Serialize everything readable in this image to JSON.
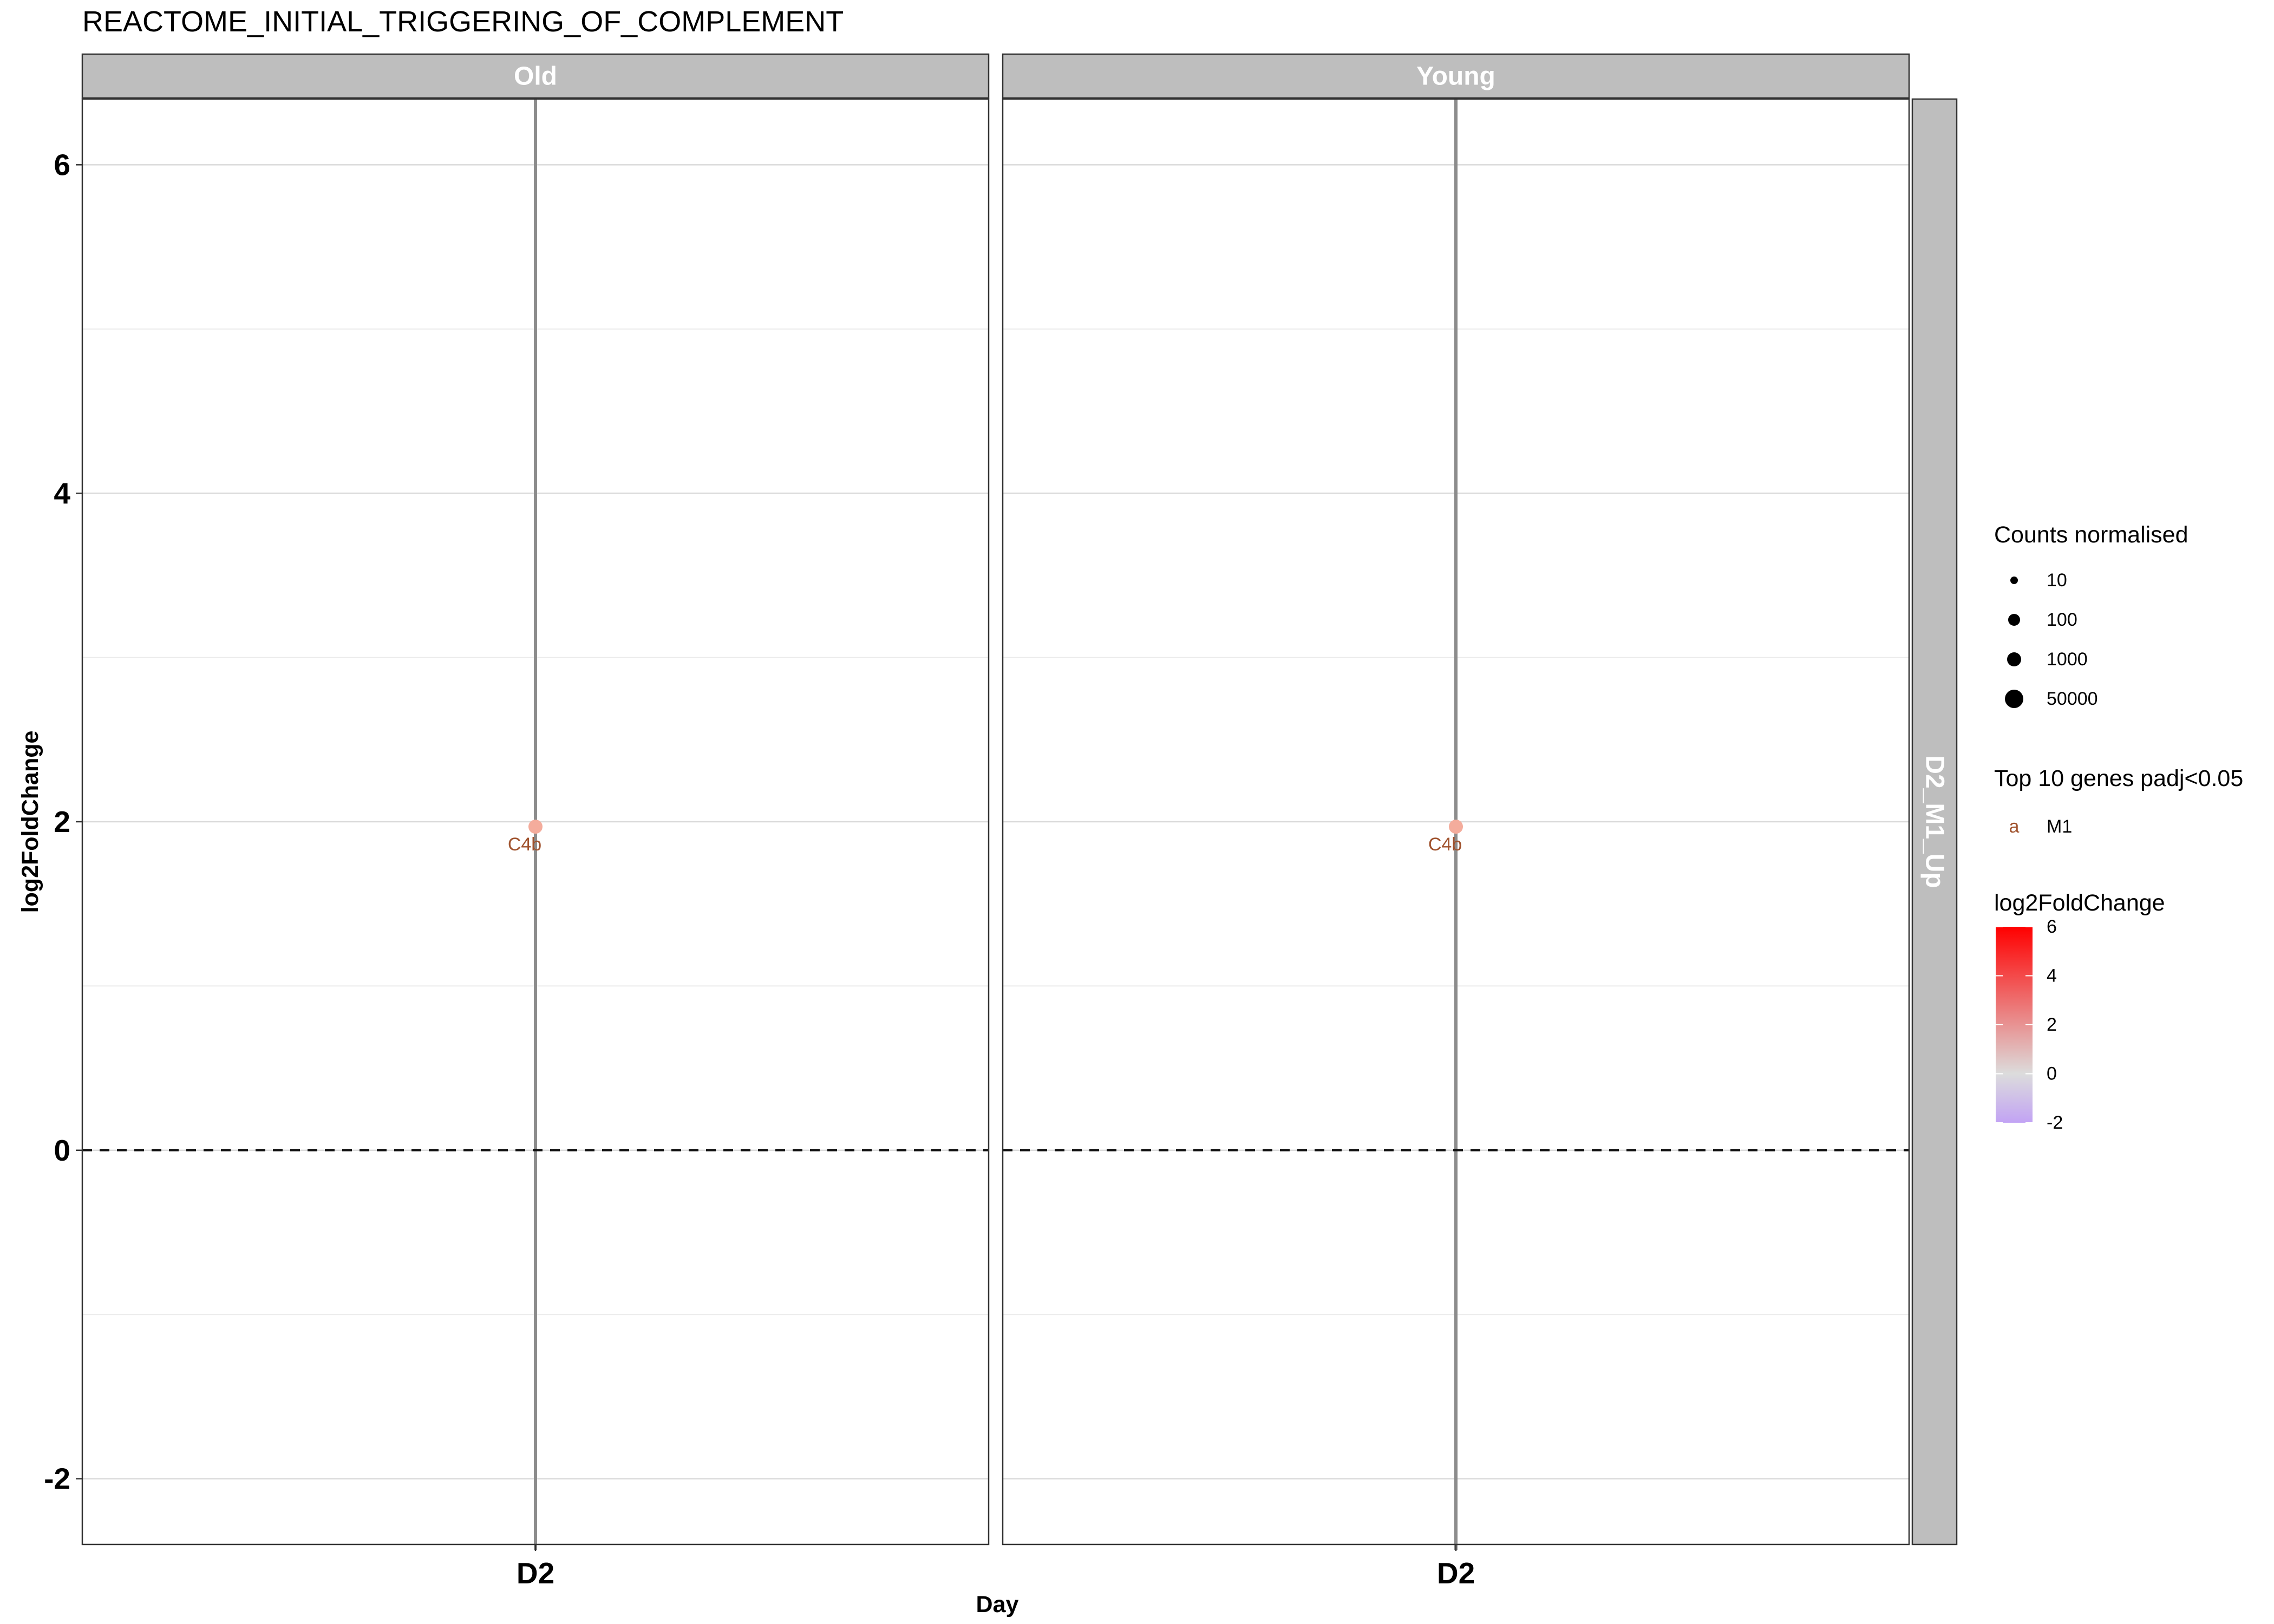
{
  "chart_data": {
    "type": "scatter",
    "title": "REACTOME_INITIAL_TRIGGERING_OF_COMPLEMENT",
    "xlabel": "Day",
    "ylabel": "log2FoldChange",
    "x_categories": [
      "D2"
    ],
    "ylim": [
      -2.4,
      6.4
    ],
    "yticks": [
      -2,
      0,
      2,
      4,
      6
    ],
    "y_tick_labels": [
      "-2",
      "0",
      "2",
      "4",
      "6"
    ],
    "reference_line": 0,
    "row_facet": "D2_M1_Up",
    "panels": [
      {
        "name": "Old",
        "points": [
          {
            "x": "D2",
            "y": 1.97,
            "gene": "C4b",
            "color": "#F4AC9C"
          }
        ]
      },
      {
        "name": "Young",
        "points": [
          {
            "x": "D2",
            "y": 1.97,
            "gene": "C4b",
            "color": "#F4AC9C"
          }
        ]
      }
    ],
    "legend": {
      "size": {
        "title": "Counts normalised",
        "labels": [
          "10",
          "100",
          "1000",
          "50000"
        ]
      },
      "label_color": {
        "title": "Top 10 genes padj<0.05",
        "key": "a",
        "label": "M1",
        "color": "#A0522D"
      },
      "color": {
        "title": "log2FoldChange",
        "labels": [
          "6",
          "4",
          "2",
          "0",
          "-2"
        ],
        "values": [
          6,
          4,
          2,
          0,
          -2
        ],
        "range": [
          -2,
          6
        ],
        "colors": [
          "#C2A3F4",
          "#DCDCDC",
          "#FF0000"
        ]
      }
    },
    "colors": {
      "strip_bg": "#BEBEBE",
      "grid": "#DADADA",
      "day_line": "#8C8C8C",
      "label_text": "#A0522D"
    }
  }
}
